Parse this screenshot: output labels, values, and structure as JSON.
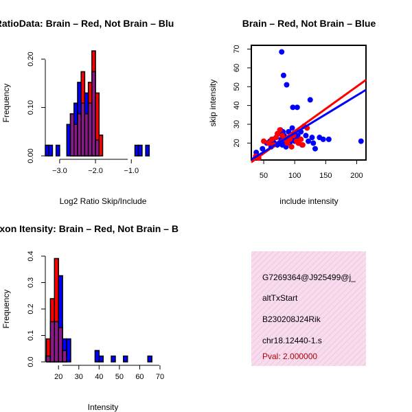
{
  "colors": {
    "red": "#ff0000",
    "blue": "#0000ff",
    "overlap": "#8b1a89",
    "box_fill": "#f7dcee",
    "box_hatch": "#f2c4e2",
    "pval": "#b00000"
  },
  "chart_data": [
    {
      "id": "ratio_hist",
      "type": "bar",
      "title": "RatioData: Brain – Red, Not Brain – Blu",
      "xlabel": "Log2 Ratio Skip/Include",
      "ylabel": "Frequency",
      "xlim": [
        -3.4,
        -0.2
      ],
      "ylim": [
        0,
        0.22
      ],
      "xticks": [
        -3.0,
        -2.0,
        -1.0
      ],
      "xtick_labels": [
        "−3.0",
        "−2.0",
        "−1.0"
      ],
      "yticks": [
        0.0,
        0.1,
        0.2
      ],
      "ytick_labels": [
        "0.00",
        "0.10",
        "0.20"
      ],
      "bin_start": -3.4,
      "bin_width": 0.1,
      "series": [
        {
          "name": "Not Brain",
          "color": "blue",
          "values": [
            0.022,
            0.022,
            0,
            0.022,
            0,
            0,
            0.065,
            0.087,
            0.109,
            0.152,
            0.109,
            0.13,
            0.109,
            0.174,
            0.033,
            0,
            0,
            0,
            0,
            0,
            0,
            0,
            0,
            0,
            0,
            0.022,
            0.022,
            0,
            0.022,
            0,
            0,
            0
          ]
        },
        {
          "name": "Brain",
          "color": "red",
          "values": [
            0,
            0,
            0,
            0,
            0,
            0,
            0,
            0.087,
            0.065,
            0.087,
            0.174,
            0.087,
            0.152,
            0.217,
            0.13,
            0.043,
            0,
            0,
            0,
            0,
            0,
            0,
            0,
            0,
            0,
            0,
            0,
            0,
            0,
            0,
            0,
            0
          ]
        }
      ]
    },
    {
      "id": "scatter",
      "type": "scatter",
      "title": "Brain – Red, Not Brain – Blue",
      "xlabel": "include intensity",
      "ylabel": "skip intensity",
      "xlim": [
        30,
        215
      ],
      "ylim": [
        11,
        72
      ],
      "xticks": [
        50,
        100,
        150,
        200
      ],
      "xtick_labels": [
        "50",
        "100",
        "150",
        "200"
      ],
      "yticks": [
        20,
        30,
        40,
        50,
        60,
        70
      ],
      "ytick_labels": [
        "20",
        "30",
        "40",
        "50",
        "60",
        "70"
      ],
      "series": [
        {
          "name": "Not Brain",
          "color": "blue",
          "points": [
            [
              38,
              15
            ],
            [
              48,
              17
            ],
            [
              55,
              20
            ],
            [
              60,
              21
            ],
            [
              62,
              18
            ],
            [
              65,
              22
            ],
            [
              67,
              20
            ],
            [
              70,
              23
            ],
            [
              72,
              19
            ],
            [
              74,
              25
            ],
            [
              75,
              20
            ],
            [
              77,
              27
            ],
            [
              78,
              22
            ],
            [
              79,
              68.5
            ],
            [
              80,
              19
            ],
            [
              81,
              26
            ],
            [
              82,
              56
            ],
            [
              83,
              24
            ],
            [
              84,
              20
            ],
            [
              85,
              22
            ],
            [
              86,
              18
            ],
            [
              87,
              51
            ],
            [
              88,
              21
            ],
            [
              90,
              26
            ],
            [
              92,
              20
            ],
            [
              95,
              22
            ],
            [
              96,
              28
            ],
            [
              97,
              39
            ],
            [
              98,
              25
            ],
            [
              100,
              21
            ],
            [
              102,
              23
            ],
            [
              104,
              39
            ],
            [
              105,
              24
            ],
            [
              106,
              20
            ],
            [
              108,
              22
            ],
            [
              110,
              26
            ],
            [
              112,
              19
            ],
            [
              118,
              24
            ],
            [
              122,
              21
            ],
            [
              125,
              43
            ],
            [
              128,
              23
            ],
            [
              130,
              20
            ],
            [
              133,
              17
            ],
            [
              140,
              23
            ],
            [
              146,
              22
            ],
            [
              155,
              22
            ],
            [
              207,
              21
            ]
          ]
        },
        {
          "name": "Brain",
          "color": "red",
          "points": [
            [
              37,
              13
            ],
            [
              42,
              12
            ],
            [
              50,
              21
            ],
            [
              58,
              20
            ],
            [
              63,
              22
            ],
            [
              66,
              19
            ],
            [
              70,
              23
            ],
            [
              72,
              25
            ],
            [
              76,
              27
            ],
            [
              80,
              24
            ],
            [
              85,
              22
            ],
            [
              88,
              20
            ],
            [
              92,
              22
            ],
            [
              95,
              18
            ],
            [
              98,
              24
            ],
            [
              103,
              21
            ],
            [
              106,
              20
            ],
            [
              110,
              22
            ],
            [
              113,
              19
            ],
            [
              115,
              29
            ],
            [
              120,
              28
            ]
          ]
        }
      ],
      "fit_lines": [
        {
          "name": "Brain fit",
          "color": "red",
          "x": [
            30,
            215
          ],
          "y": [
            9.8,
            53.6
          ]
        },
        {
          "name": "Not Brain fit",
          "color": "blue",
          "x": [
            30,
            215
          ],
          "y": [
            11.3,
            48.3
          ]
        }
      ]
    },
    {
      "id": "intensity_hist",
      "type": "bar",
      "title": "Exon Itensity: Brain – Red, Not Brain – B",
      "xlabel": "Intensity",
      "ylabel": "Frequency",
      "xlim": [
        13.5,
        70
      ],
      "ylim": [
        0,
        0.4
      ],
      "xticks": [
        20,
        30,
        40,
        50,
        60,
        70
      ],
      "xtick_labels": [
        "20",
        "30",
        "40",
        "50",
        "60",
        "70"
      ],
      "yticks": [
        0.0,
        0.1,
        0.2,
        0.3,
        0.4
      ],
      "ytick_labels": [
        "0.0",
        "0.1",
        "0.2",
        "0.3",
        "0.4"
      ],
      "bin_start": 14,
      "bin_width": 2,
      "series": [
        {
          "name": "Not Brain",
          "color": "blue",
          "values": [
            0.022,
            0.152,
            0.152,
            0.326,
            0.087,
            0.087,
            0,
            0,
            0,
            0,
            0,
            0,
            0.043,
            0.022,
            0,
            0,
            0.022,
            0,
            0,
            0.022,
            0,
            0,
            0,
            0,
            0,
            0.022
          ]
        },
        {
          "name": "Brain",
          "color": "red",
          "values": [
            0.087,
            0.239,
            0.391,
            0.13,
            0.043,
            0,
            0,
            0,
            0,
            0,
            0,
            0,
            0,
            0,
            0,
            0,
            0,
            0,
            0,
            0,
            0,
            0,
            0,
            0,
            0,
            0
          ]
        }
      ]
    }
  ],
  "info_box": {
    "lines": [
      "G7269364@J925499@j_",
      "altTxStart",
      "B230208J24Rik",
      "chr18.12440-1.s"
    ],
    "pval": "Pval: 2.000000"
  }
}
